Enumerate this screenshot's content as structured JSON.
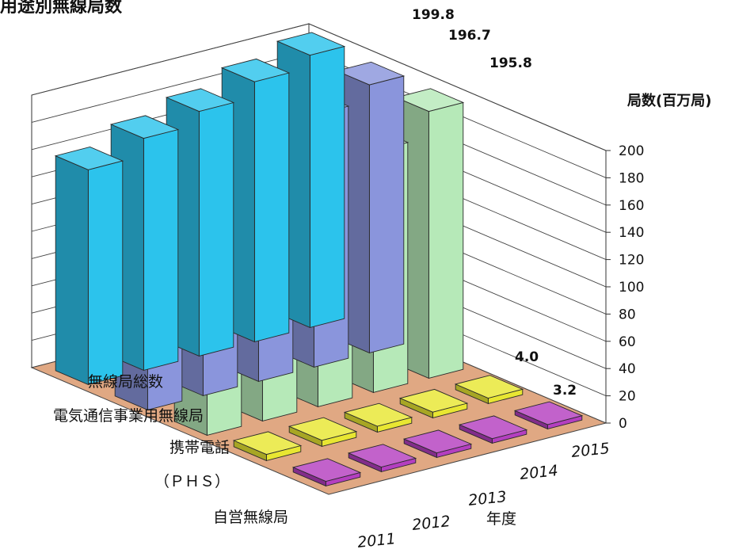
{
  "chart_data": {
    "type": "bar",
    "title": "用途別無線局数",
    "unit_label": "局数(百万局)",
    "x_axis_label": "年度",
    "categories": [
      "2011",
      "2012",
      "2013",
      "2014",
      "2015"
    ],
    "y_ticks": [
      "200",
      "180",
      "160",
      "140",
      "120",
      "100",
      "80",
      "60",
      "40",
      "20",
      "0"
    ],
    "ylim": [
      0,
      200
    ],
    "grid": true,
    "series": [
      {
        "name": "無線局総数",
        "values": [
          157.6,
          170.2,
          179.5,
          190.8,
          199.8
        ],
        "color": "#2cc3ec"
      },
      {
        "name": "電気通信事業用無線局",
        "values": [
          149.5,
          162.5,
          173.2,
          185.0,
          196.7
        ],
        "color": "#8a95dc"
      },
      {
        "name": "携帯電話",
        "values": [
          137.5,
          151.3,
          164.1,
          177.0,
          195.8
        ],
        "color": "#b6e9b8"
      },
      {
        "name": "（ＰＨＳ）",
        "values": [
          4.5,
          4.4,
          4.3,
          4.2,
          4.0
        ],
        "color": "#e8e632"
      },
      {
        "name": "自営無線局",
        "values": [
          3.4,
          3.4,
          3.3,
          3.3,
          3.2
        ],
        "color": "#b43fc0"
      }
    ],
    "data_labels": [
      {
        "series": "無線局総数",
        "category": "2015",
        "text": "199.8"
      },
      {
        "series": "電気通信事業用無線局",
        "category": "2015",
        "text": "196.7"
      },
      {
        "series": "携帯電話",
        "category": "2015",
        "text": "195.8"
      },
      {
        "series": "（ＰＨＳ）",
        "category": "2015",
        "text": "4.0"
      },
      {
        "series": "自営無線局",
        "category": "2015",
        "text": "3.2"
      }
    ]
  }
}
